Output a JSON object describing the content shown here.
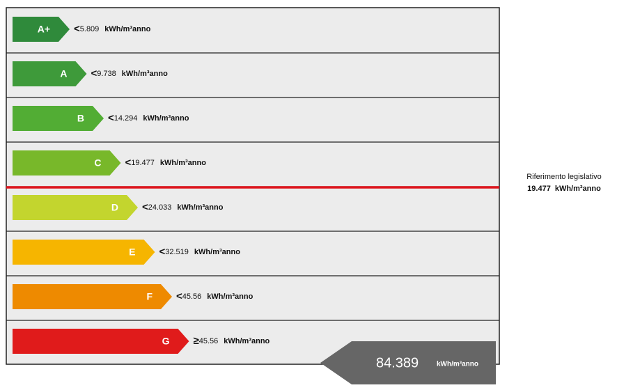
{
  "classes": [
    {
      "label": "A+",
      "symbol": "<",
      "value": "5.809",
      "unit": "kWh/m³anno",
      "color": "#2f8a3b"
    },
    {
      "label": "A",
      "symbol": "<",
      "value": "9.738",
      "unit": "kWh/m³anno",
      "color": "#3e9a3a"
    },
    {
      "label": "B",
      "symbol": "<",
      "value": "14.294",
      "unit": "kWh/m³anno",
      "color": "#52ad34"
    },
    {
      "label": "C",
      "symbol": "<",
      "value": "19.477",
      "unit": "kWh/m³anno",
      "color": "#78b82a"
    },
    {
      "label": "D",
      "symbol": "<",
      "value": "24.033",
      "unit": "kWh/m³anno",
      "color": "#c3d52e"
    },
    {
      "label": "E",
      "symbol": "<",
      "value": "32.519",
      "unit": "kWh/m³anno",
      "color": "#f6b500"
    },
    {
      "label": "F",
      "symbol": "<",
      "value": "45.56",
      "unit": "kWh/m³anno",
      "color": "#ee8a00"
    },
    {
      "label": "G",
      "symbol": "≥",
      "value": "45.56",
      "unit": "kWh/m³anno",
      "color": "#e01b1b"
    }
  ],
  "reference": {
    "title": "Riferimento legislativo",
    "value": "19.477",
    "unit": "kWh/m³anno"
  },
  "indicator": {
    "value": "84.389",
    "unit": "kWh/m³anno"
  }
}
